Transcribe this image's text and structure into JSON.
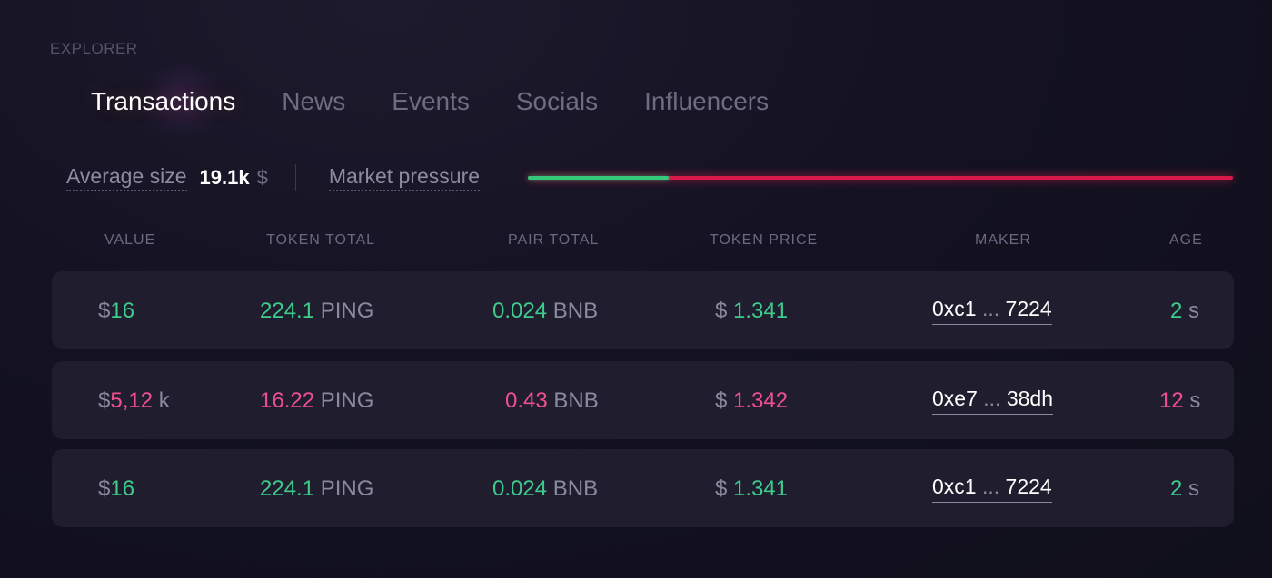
{
  "section_label": "EXPLORER",
  "tabs": [
    {
      "label": "Transactions",
      "active": true
    },
    {
      "label": "News",
      "active": false
    },
    {
      "label": "Events",
      "active": false
    },
    {
      "label": "Socials",
      "active": false
    },
    {
      "label": "Influencers",
      "active": false
    }
  ],
  "stats": {
    "average_size_label": "Average size",
    "average_size_value": "19.1k",
    "average_size_unit": "$",
    "market_pressure_label": "Market pressure",
    "market_pressure_buy_fraction": 0.2
  },
  "colors": {
    "buy": "#3ecb8c",
    "sell": "#ef4f8f",
    "pressure_buy": "#35c77a",
    "pressure_sell": "#d81a4a"
  },
  "columns": [
    "VALUE",
    "TOKEN TOTAL",
    "PAIR TOTAL",
    "TOKEN PRICE",
    "MAKER",
    "AGE"
  ],
  "rows": [
    {
      "side": "buy",
      "value_currency": "$",
      "value": "16",
      "value_suffix": "",
      "token_total": "224.1",
      "token_symbol": "PING",
      "pair_total": "0.024",
      "pair_symbol": "BNB",
      "price_currency": "$",
      "price": "1.341",
      "maker_start": "0xc1",
      "maker_ellipsis": "...",
      "maker_end": "7224",
      "age": "2",
      "age_unit": "s"
    },
    {
      "side": "sell",
      "value_currency": "$",
      "value": "5,12",
      "value_suffix": "k",
      "token_total": "16.22",
      "token_symbol": "PING",
      "pair_total": "0.43",
      "pair_symbol": "BNB",
      "price_currency": "$",
      "price": "1.342",
      "maker_start": "0xe7",
      "maker_ellipsis": "...",
      "maker_end": "38dh",
      "age": "12",
      "age_unit": "s"
    },
    {
      "side": "buy",
      "value_currency": "$",
      "value": "16",
      "value_suffix": "",
      "token_total": "224.1",
      "token_symbol": "PING",
      "pair_total": "0.024",
      "pair_symbol": "BNB",
      "price_currency": "$",
      "price": "1.341",
      "maker_start": "0xc1",
      "maker_ellipsis": "...",
      "maker_end": "7224",
      "age": "2",
      "age_unit": "s"
    }
  ]
}
